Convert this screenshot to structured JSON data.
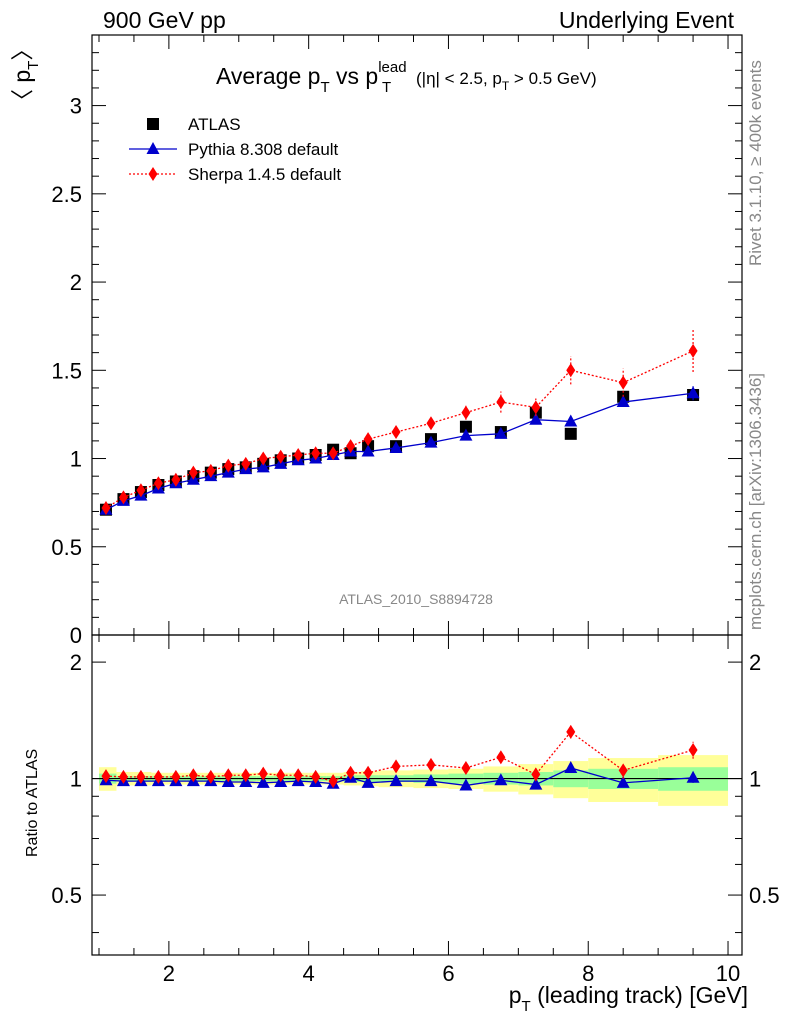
{
  "header": {
    "left": "900 GeV pp",
    "right": "Underlying Event"
  },
  "side_labels": {
    "rivet": "Rivet 3.1.10, ≥ 400k events",
    "mcplots": "mcplots.cern.ch [arXiv:1306.3436]"
  },
  "analysis_id": "ATLAS_2010_S8894728",
  "main_title": {
    "prefix": "Average p",
    "sub_T": "T",
    "mid": " vs p",
    "sup_lead": "lead",
    "cut": "(|η| < 2.5, p",
    "cut_end": " > 0.5 GeV)"
  },
  "colors": {
    "atlas": "#000000",
    "pythia": "#0000cc",
    "sherpa": "#ff0000",
    "band_inner": "#99ff99",
    "band_outer": "#ffff99"
  },
  "chart_data": [
    {
      "type": "scatter",
      "panel": "main",
      "ylabel_text": "〈 p",
      "ylabel_sub": "T",
      "ylabel_close": "〉",
      "xlim": [
        0.9,
        10.2
      ],
      "ylim": [
        0,
        3.4
      ],
      "xticks": [
        "2",
        "4",
        "6",
        "8",
        "10"
      ],
      "yticks": [
        "0",
        "0.5",
        "1",
        "1.5",
        "2",
        "2.5",
        "3"
      ],
      "legend_position": "top-left",
      "x": [
        1.1,
        1.35,
        1.6,
        1.85,
        2.1,
        2.35,
        2.6,
        2.85,
        3.1,
        3.35,
        3.6,
        3.85,
        4.1,
        4.35,
        4.6,
        4.85,
        5.25,
        5.75,
        6.25,
        6.75,
        7.25,
        7.75,
        8.5,
        9.5
      ],
      "series": [
        {
          "name": "ATLAS",
          "marker": "square",
          "values": [
            0.71,
            0.77,
            0.81,
            0.85,
            0.87,
            0.9,
            0.92,
            0.94,
            0.95,
            0.97,
            0.99,
            1.0,
            1.02,
            1.05,
            1.03,
            1.07,
            1.07,
            1.11,
            1.18,
            1.15,
            1.26,
            1.14,
            1.35,
            1.36
          ]
        },
        {
          "name": "Pythia 8.308 default",
          "marker": "triangle",
          "values": [
            0.71,
            0.76,
            0.79,
            0.83,
            0.86,
            0.88,
            0.9,
            0.92,
            0.94,
            0.95,
            0.97,
            0.99,
            1.0,
            1.02,
            1.04,
            1.04,
            1.06,
            1.09,
            1.13,
            1.14,
            1.22,
            1.21,
            1.32,
            1.37
          ],
          "errors": [
            0,
            0,
            0,
            0,
            0,
            0,
            0,
            0,
            0,
            0,
            0,
            0,
            0,
            0,
            0,
            0,
            0,
            0,
            0,
            0,
            0,
            0.02,
            0.02,
            0.04
          ]
        },
        {
          "name": "Sherpa 1.4.5 default",
          "marker": "diamond",
          "values": [
            0.72,
            0.78,
            0.82,
            0.86,
            0.88,
            0.92,
            0.93,
            0.96,
            0.97,
            1.0,
            1.01,
            1.02,
            1.03,
            1.03,
            1.07,
            1.11,
            1.15,
            1.2,
            1.26,
            1.32,
            1.29,
            1.5,
            1.43,
            1.61
          ],
          "errors": [
            0,
            0,
            0,
            0,
            0,
            0,
            0,
            0,
            0,
            0,
            0,
            0,
            0,
            0,
            0,
            0,
            0.01,
            0.02,
            0.04,
            0.06,
            0.05,
            0.08,
            0.08,
            0.12
          ]
        }
      ]
    },
    {
      "type": "scatter",
      "panel": "ratio",
      "ylabel": "Ratio to ATLAS",
      "xlabel_text": "p",
      "xlabel_sub": "T",
      "xlabel_rest": " (leading track) [GeV]",
      "xlim": [
        0.9,
        10.2
      ],
      "ylim": [
        0.35,
        2.35
      ],
      "xticks": [
        "2",
        "4",
        "6",
        "8",
        "10"
      ],
      "yticks": [
        "0.5",
        "1",
        "2"
      ],
      "x_edges": [
        1.0,
        1.25,
        1.5,
        1.75,
        2.0,
        2.25,
        2.5,
        2.75,
        3.0,
        3.25,
        3.5,
        3.75,
        4.0,
        4.25,
        4.5,
        4.75,
        5.0,
        5.5,
        6.0,
        6.5,
        7.0,
        7.5,
        8.0,
        9.0,
        10.0
      ],
      "band_inner": [
        0.03,
        0.015,
        0.015,
        0.015,
        0.015,
        0.015,
        0.015,
        0.015,
        0.015,
        0.015,
        0.015,
        0.015,
        0.015,
        0.015,
        0.02,
        0.02,
        0.02,
        0.025,
        0.03,
        0.035,
        0.04,
        0.05,
        0.06,
        0.07
      ],
      "band_outer": [
        0.07,
        0.04,
        0.04,
        0.035,
        0.035,
        0.035,
        0.035,
        0.035,
        0.035,
        0.035,
        0.035,
        0.035,
        0.035,
        0.035,
        0.04,
        0.045,
        0.05,
        0.055,
        0.06,
        0.075,
        0.09,
        0.11,
        0.13,
        0.15
      ],
      "x": [
        1.1,
        1.35,
        1.6,
        1.85,
        2.1,
        2.35,
        2.6,
        2.85,
        3.1,
        3.35,
        3.6,
        3.85,
        4.1,
        4.35,
        4.6,
        4.85,
        5.25,
        5.75,
        6.25,
        6.75,
        7.25,
        7.75,
        8.5,
        9.5
      ],
      "series": [
        {
          "name": "Pythia 8.308 default",
          "marker": "triangle",
          "values": [
            0.99,
            0.985,
            0.985,
            0.985,
            0.985,
            0.985,
            0.985,
            0.98,
            0.98,
            0.975,
            0.98,
            0.985,
            0.98,
            0.97,
            1.005,
            0.975,
            0.985,
            0.985,
            0.96,
            0.99,
            0.965,
            1.065,
            0.975,
            1.005
          ],
          "errors": [
            0,
            0,
            0,
            0,
            0,
            0,
            0,
            0,
            0,
            0,
            0,
            0,
            0,
            0,
            0,
            0,
            0,
            0,
            0,
            0,
            0,
            0.015,
            0.015,
            0.03
          ]
        },
        {
          "name": "Sherpa 1.4.5 default",
          "marker": "diamond",
          "values": [
            1.015,
            1.01,
            1.01,
            1.01,
            1.01,
            1.02,
            1.01,
            1.02,
            1.02,
            1.03,
            1.02,
            1.02,
            1.01,
            0.985,
            1.035,
            1.035,
            1.075,
            1.085,
            1.065,
            1.135,
            1.025,
            1.32,
            1.05,
            1.185
          ],
          "errors": [
            0,
            0,
            0,
            0,
            0,
            0,
            0,
            0,
            0,
            0,
            0,
            0,
            0,
            0,
            0,
            0,
            0.01,
            0.015,
            0.02,
            0.04,
            0.04,
            0.05,
            0.05,
            0.06
          ]
        }
      ]
    }
  ]
}
